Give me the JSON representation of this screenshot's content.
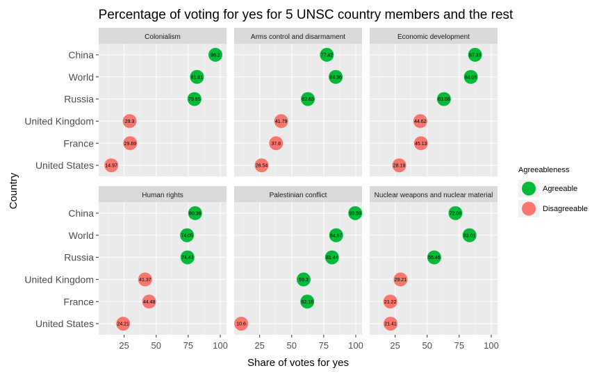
{
  "chart_data": {
    "type": "scatter",
    "title": "Percentage of voting for yes for 5 UNSC country members and the rest",
    "xlabel": "Share of votes for yes",
    "ylabel": "Country",
    "xlim": [
      10,
      100
    ],
    "x_ticks": [
      25,
      50,
      75,
      100
    ],
    "countries": [
      "China",
      "World",
      "Russia",
      "United Kingdom",
      "France",
      "United States"
    ],
    "legend": {
      "title": "Agreeableness",
      "entries": [
        {
          "label": "Agreeable",
          "color": "#00BA38"
        },
        {
          "label": "Disagreeable",
          "color": "#F8766D"
        }
      ]
    },
    "panels": [
      {
        "title": "Colonialism",
        "points": [
          {
            "country": "China",
            "value": 96.2,
            "label": "96.2",
            "group": "Agreeable"
          },
          {
            "country": "World",
            "value": 81.81,
            "label": "81.81",
            "group": "Agreeable"
          },
          {
            "country": "Russia",
            "value": 79.85,
            "label": "79.85",
            "group": "Agreeable"
          },
          {
            "country": "United Kingdom",
            "value": 29.3,
            "label": "29.3",
            "group": "Disagreeable"
          },
          {
            "country": "France",
            "value": 29.69,
            "label": "29.69",
            "group": "Disagreeable"
          },
          {
            "country": "United States",
            "value": 14.97,
            "label": "14.97",
            "group": "Disagreeable"
          }
        ]
      },
      {
        "title": "Arms control and disarmament",
        "points": [
          {
            "country": "China",
            "value": 77.42,
            "label": "77.42",
            "group": "Agreeable"
          },
          {
            "country": "World",
            "value": 84.36,
            "label": "84.36",
            "group": "Agreeable"
          },
          {
            "country": "Russia",
            "value": 62.63,
            "label": "62.63",
            "group": "Agreeable"
          },
          {
            "country": "United Kingdom",
            "value": 41.79,
            "label": "41.79",
            "group": "Disagreeable"
          },
          {
            "country": "France",
            "value": 37.8,
            "label": "37.8",
            "group": "Disagreeable"
          },
          {
            "country": "United States",
            "value": 26.54,
            "label": "26.54",
            "group": "Disagreeable"
          }
        ]
      },
      {
        "title": "Economic development",
        "points": [
          {
            "country": "China",
            "value": 87.33,
            "label": "87.33",
            "group": "Agreeable"
          },
          {
            "country": "World",
            "value": 84.06,
            "label": "84.06",
            "group": "Agreeable"
          },
          {
            "country": "Russia",
            "value": 63.06,
            "label": "63.06",
            "group": "Agreeable"
          },
          {
            "country": "United Kingdom",
            "value": 44.62,
            "label": "44.62",
            "group": "Disagreeable"
          },
          {
            "country": "France",
            "value": 45.13,
            "label": "45.13",
            "group": "Disagreeable"
          },
          {
            "country": "United States",
            "value": 28.19,
            "label": "28.19",
            "group": "Disagreeable"
          }
        ]
      },
      {
        "title": "Human rights",
        "points": [
          {
            "country": "China",
            "value": 80.36,
            "label": "80.36",
            "group": "Agreeable"
          },
          {
            "country": "World",
            "value": 74.05,
            "label": "74.05",
            "group": "Agreeable"
          },
          {
            "country": "Russia",
            "value": 74.43,
            "label": "74.43",
            "group": "Agreeable"
          },
          {
            "country": "United Kingdom",
            "value": 41.37,
            "label": "41.37",
            "group": "Disagreeable"
          },
          {
            "country": "France",
            "value": 44.48,
            "label": "44.48",
            "group": "Disagreeable"
          },
          {
            "country": "United States",
            "value": 24.21,
            "label": "24.21",
            "group": "Disagreeable"
          }
        ]
      },
      {
        "title": "Palestinian conflict",
        "points": [
          {
            "country": "China",
            "value": 99.59,
            "label": "99.59",
            "group": "Agreeable"
          },
          {
            "country": "World",
            "value": 84.67,
            "label": "84.67",
            "group": "Agreeable"
          },
          {
            "country": "Russia",
            "value": 81.44,
            "label": "81.44",
            "group": "Agreeable"
          },
          {
            "country": "United Kingdom",
            "value": 59.3,
            "label": "59.3",
            "group": "Agreeable"
          },
          {
            "country": "France",
            "value": 62.18,
            "label": "62.18",
            "group": "Agreeable"
          },
          {
            "country": "United States",
            "value": 10.6,
            "label": "10.6",
            "group": "Disagreeable"
          }
        ]
      },
      {
        "title": "Nuclear weapons and nuclear material",
        "points": [
          {
            "country": "China",
            "value": 72.06,
            "label": "72.06",
            "group": "Agreeable"
          },
          {
            "country": "World",
            "value": 83.01,
            "label": "83.01",
            "group": "Agreeable"
          },
          {
            "country": "Russia",
            "value": 55.46,
            "label": "55.46",
            "group": "Agreeable"
          },
          {
            "country": "United Kingdom",
            "value": 29.21,
            "label": "29.21",
            "group": "Disagreeable"
          },
          {
            "country": "France",
            "value": 21.22,
            "label": "21.22",
            "group": "Disagreeable"
          },
          {
            "country": "United States",
            "value": 21.41,
            "label": "21.41",
            "group": "Disagreeable"
          }
        ]
      }
    ]
  }
}
